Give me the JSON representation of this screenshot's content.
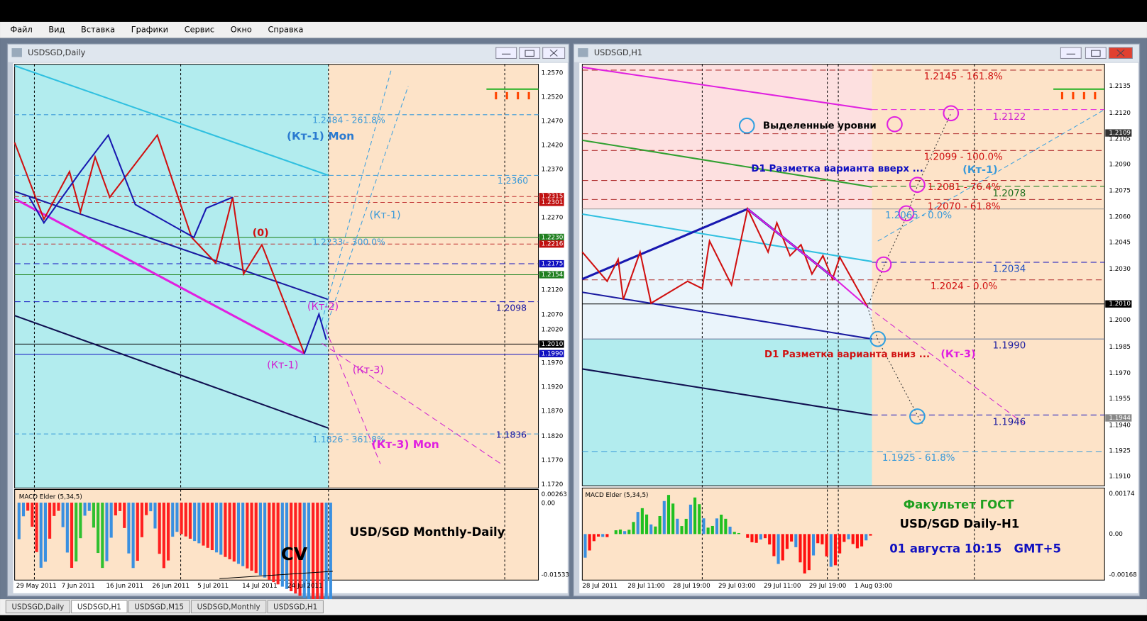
{
  "menu": [
    "Файл",
    "Вид",
    "Вставка",
    "Графики",
    "Сервис",
    "Окно",
    "Справка"
  ],
  "windows": [
    {
      "title": "USDSGD,Daily",
      "price_axis": [
        "1.2570",
        "1.2520",
        "1.2470",
        "1.2420",
        "1.2370",
        "1.2270",
        "1.2120",
        "1.2070",
        "1.2020",
        "1.1970",
        "1.1920",
        "1.1870",
        "1.1820",
        "1.1770",
        "1.1720"
      ],
      "price_tags": [
        "1.2315",
        "1.2301",
        "1.2230",
        "1.2216",
        "1.2175",
        "1.2154",
        "1.2010",
        "1.1990"
      ],
      "annotations": [
        "1.2484 - 261.8%",
        "(Кт-1) Mon",
        "1.2360",
        "(Кт-1)",
        "(0)",
        "1.2233 - 300.0%",
        "1.2098",
        "(Кт-2)",
        "(Кт-1)",
        "(Кт-3)",
        "1.1826 - 361.8%",
        "1.1836",
        "(Кт-3) Mon",
        "USD/SGD Monthly-Daily",
        "CV"
      ],
      "indicator": {
        "name": "MACD Elder (5,34,5)",
        "levels": [
          "0.00263",
          "0.00",
          "-0.01533"
        ]
      },
      "dates": [
        "29 May 2011",
        "7 Jun 2011",
        "16 Jun 2011",
        "26 Jun 2011",
        "5 Jul 2011",
        "14 Jul 2011",
        "24 Jul 2011"
      ]
    },
    {
      "title": "USDSGD,H1",
      "price_axis": [
        "1.2135",
        "1.2120",
        "1.2105",
        "1.2090",
        "1.2075",
        "1.2060",
        "1.2045",
        "1.2030",
        "1.2000",
        "1.1985",
        "1.1970",
        "1.1955",
        "1.1940",
        "1.1925",
        "1.1910"
      ],
      "price_tags": [
        "1.2109",
        "1.2010",
        "1.1944"
      ],
      "annotations": [
        "1.2145 - 161.8%",
        "1.2122",
        "Выделенные уровни",
        "1.2099 - 100.0%",
        "D1 Разметка варианта вверх ...",
        "(Кт-1)",
        "1.2081 - 76.4%",
        "1.2078",
        "1.2070 - 61.8%",
        "1.2065 - 0.0%",
        "1.2034",
        "1.2024 - 0.0%",
        "1.1990",
        "D1 Разметка варианта вниз ...",
        "(Кт-3)",
        "1.1946",
        "1.1925 - 61.8%",
        "Факультет ГОСТ",
        "USD/SGD Daily-H1",
        "01 августа 10:15   GMT+5"
      ],
      "indicator": {
        "name": "MACD Elder (5,34,5)",
        "levels": [
          "0.00174",
          "0.00",
          "-0.00168"
        ]
      },
      "dates": [
        "28 Jul 2011",
        "28 Jul 11:00",
        "28 Jul 19:00",
        "29 Jul 03:00",
        "29 Jul 11:00",
        "29 Jul 19:00",
        "1 Aug 03:00"
      ]
    }
  ],
  "tabs": [
    "USDSGD,Daily",
    "USDSGD,H1",
    "USDSGD,M15",
    "USDSGD,Monthly",
    "USDSGD,H1"
  ]
}
